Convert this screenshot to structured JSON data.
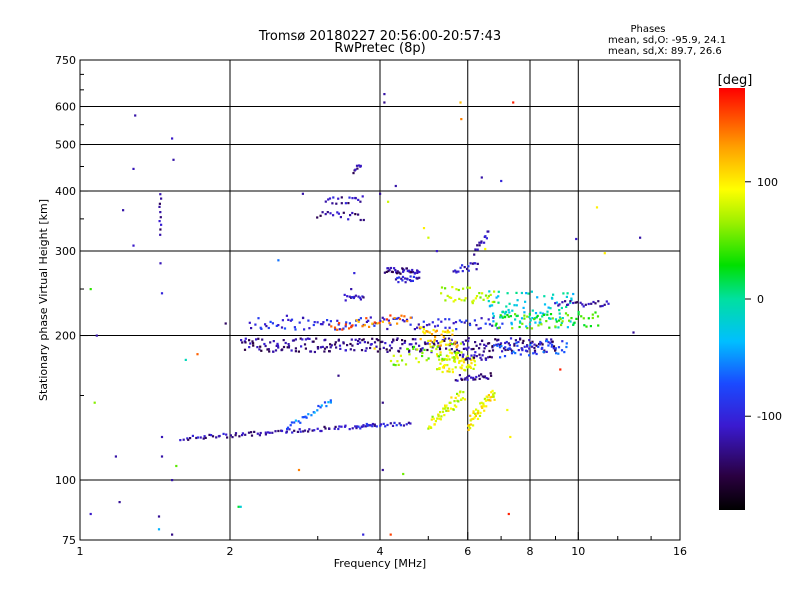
{
  "chart_data": {
    "type": "scatter",
    "title": "Tromsø 20180227 20:56:00-20:57:43",
    "subtitle": "RwPretec (8p)",
    "xlabel": "Frequency [MHz]",
    "ylabel": "Stationary phase Virtual Height [km]",
    "xscale": "log",
    "yscale": "log",
    "xlim": [
      1,
      16
    ],
    "ylim": [
      75,
      750
    ],
    "xticks": [
      1,
      2,
      4,
      6,
      8,
      10,
      16
    ],
    "xtick_labels": [
      "1",
      "2",
      "4",
      "6",
      "8",
      "10",
      "16"
    ],
    "xgrid": [
      2,
      4,
      6,
      8,
      10
    ],
    "yticks": [
      75,
      100,
      200,
      300,
      400,
      500,
      600,
      750
    ],
    "ytick_labels": [
      "75",
      "100",
      "200",
      "300",
      "400",
      "500",
      "600",
      "750"
    ],
    "ygrid": [
      100,
      200,
      300,
      400,
      500,
      600
    ],
    "grid": true,
    "stats": {
      "heading": "Phases",
      "line_o": "mean, sd,O: -95.9, 24.1",
      "line_x": "mean, sd,X:  89.7, 26.6"
    },
    "colorbar": {
      "label": "[deg]",
      "range": [
        -180,
        180
      ],
      "ticks": [
        100,
        0,
        -100
      ],
      "tick_labels": [
        "100",
        "0",
        "-100"
      ]
    },
    "traces": [
      {
        "x0": 1.6,
        "x1": 3.9,
        "y0": 122,
        "y1": 130,
        "phase": -118,
        "n": 85,
        "jit": 2
      },
      {
        "x0": 3.6,
        "x1": 4.6,
        "y0": 130,
        "y1": 131,
        "phase": -105,
        "n": 25,
        "jit": 2
      },
      {
        "x0": 2.6,
        "x1": 3.2,
        "y0": 128,
        "y1": 147,
        "phase": -60,
        "n": 25,
        "jit": 3
      },
      {
        "x0": 2.1,
        "x1": 9.0,
        "y0": 191,
        "y1": 191,
        "phase": -128,
        "n": 260,
        "jit": 7
      },
      {
        "x0": 2.2,
        "x1": 7.0,
        "y0": 212,
        "y1": 212,
        "phase": -95,
        "n": 110,
        "jit": 6
      },
      {
        "x0": 3.2,
        "x1": 4.6,
        "y0": 209,
        "y1": 218,
        "phase": 140,
        "n": 30,
        "jit": 5
      },
      {
        "x0": 4.1,
        "x1": 4.8,
        "y0": 273,
        "y1": 273,
        "phase": -125,
        "n": 35,
        "jit": 3
      },
      {
        "x0": 4.3,
        "x1": 4.8,
        "y0": 262,
        "y1": 262,
        "phase": -110,
        "n": 20,
        "jit": 3
      },
      {
        "x0": 3.4,
        "x1": 3.7,
        "y0": 240,
        "y1": 240,
        "phase": -115,
        "n": 14,
        "jit": 3
      },
      {
        "x0": 3.1,
        "x1": 3.7,
        "y0": 383,
        "y1": 383,
        "phase": -120,
        "n": 18,
        "jit": 4
      },
      {
        "x0": 3.0,
        "x1": 3.7,
        "y0": 355,
        "y1": 355,
        "phase": -125,
        "n": 18,
        "jit": 4
      },
      {
        "x0": 3.55,
        "x1": 3.65,
        "y0": 440,
        "y1": 455,
        "phase": -130,
        "n": 8,
        "jit": 2
      },
      {
        "x0": 5.2,
        "x1": 6.2,
        "y0": 176,
        "y1": 176,
        "phase": 90,
        "n": 70,
        "jit": 10
      },
      {
        "x0": 5.7,
        "x1": 6.7,
        "y0": 163,
        "y1": 165,
        "phase": -130,
        "n": 25,
        "jit": 3
      },
      {
        "x0": 5.8,
        "x1": 6.7,
        "y0": 180,
        "y1": 180,
        "phase": -128,
        "n": 20,
        "jit": 3
      },
      {
        "x0": 5.0,
        "x1": 5.9,
        "y0": 130,
        "y1": 152,
        "phase": 85,
        "n": 50,
        "jit": 7
      },
      {
        "x0": 6.0,
        "x1": 6.8,
        "y0": 130,
        "y1": 152,
        "phase": 95,
        "n": 50,
        "jit": 7
      },
      {
        "x0": 5.3,
        "x1": 6.8,
        "y0": 245,
        "y1": 240,
        "phase": 70,
        "n": 35,
        "jit": 8
      },
      {
        "x0": 6.6,
        "x1": 9.8,
        "y0": 230,
        "y1": 225,
        "phase": -20,
        "n": 90,
        "jit": 18
      },
      {
        "x0": 6.8,
        "x1": 11.0,
        "y0": 214,
        "y1": 216,
        "phase": 40,
        "n": 60,
        "jit": 8
      },
      {
        "x0": 6.8,
        "x1": 9.5,
        "y0": 187,
        "y1": 190,
        "phase": -80,
        "n": 50,
        "jit": 8
      },
      {
        "x0": 9.0,
        "x1": 11.5,
        "y0": 233,
        "y1": 233,
        "phase": -125,
        "n": 25,
        "jit": 3
      },
      {
        "x0": 1.45,
        "x1": 1.45,
        "y0": 325,
        "y1": 395,
        "phase": -120,
        "n": 10,
        "jit": 1
      },
      {
        "x0": 4.8,
        "x1": 5.7,
        "y0": 200,
        "y1": 196,
        "phase": 110,
        "n": 40,
        "jit": 9
      },
      {
        "x0": 4.2,
        "x1": 5.8,
        "y0": 180,
        "y1": 185,
        "phase": 60,
        "n": 40,
        "jit": 9
      },
      {
        "x0": 5.6,
        "x1": 6.3,
        "y0": 275,
        "y1": 280,
        "phase": -110,
        "n": 18,
        "jit": 4
      },
      {
        "x0": 6.2,
        "x1": 6.6,
        "y0": 300,
        "y1": 330,
        "phase": -120,
        "n": 14,
        "jit": 4
      }
    ],
    "points": [
      {
        "x": 1.29,
        "y": 575,
        "phase": -120
      },
      {
        "x": 1.53,
        "y": 515,
        "phase": -110
      },
      {
        "x": 1.54,
        "y": 465,
        "phase": -120
      },
      {
        "x": 1.28,
        "y": 445,
        "phase": -115
      },
      {
        "x": 1.22,
        "y": 365,
        "phase": -120
      },
      {
        "x": 1.28,
        "y": 308,
        "phase": -110
      },
      {
        "x": 1.45,
        "y": 283,
        "phase": -115
      },
      {
        "x": 1.46,
        "y": 245,
        "phase": -100
      },
      {
        "x": 1.05,
        "y": 250,
        "phase": 40
      },
      {
        "x": 1.08,
        "y": 200,
        "phase": -120
      },
      {
        "x": 1.07,
        "y": 145,
        "phase": 60
      },
      {
        "x": 1.18,
        "y": 112,
        "phase": -120
      },
      {
        "x": 1.46,
        "y": 123,
        "phase": -115
      },
      {
        "x": 1.46,
        "y": 112,
        "phase": -120
      },
      {
        "x": 1.56,
        "y": 107,
        "phase": 50
      },
      {
        "x": 1.53,
        "y": 100,
        "phase": -120
      },
      {
        "x": 1.2,
        "y": 90,
        "phase": -125
      },
      {
        "x": 1.05,
        "y": 85,
        "phase": -110
      },
      {
        "x": 1.44,
        "y": 84,
        "phase": -125
      },
      {
        "x": 1.44,
        "y": 79,
        "phase": -40
      },
      {
        "x": 1.53,
        "y": 77,
        "phase": -130
      },
      {
        "x": 1.96,
        "y": 212,
        "phase": -140
      },
      {
        "x": 1.72,
        "y": 183,
        "phase": 150
      },
      {
        "x": 1.63,
        "y": 178,
        "phase": -10
      },
      {
        "x": 2.08,
        "y": 88,
        "phase": 20
      },
      {
        "x": 2.1,
        "y": 88,
        "phase": -20
      },
      {
        "x": 2.75,
        "y": 105,
        "phase": 140
      },
      {
        "x": 3.7,
        "y": 77,
        "phase": -100
      },
      {
        "x": 4.05,
        "y": 145,
        "phase": -130
      },
      {
        "x": 4.05,
        "y": 105,
        "phase": -125
      },
      {
        "x": 4.2,
        "y": 77,
        "phase": 160
      },
      {
        "x": 4.45,
        "y": 103,
        "phase": 55
      },
      {
        "x": 4.08,
        "y": 637,
        "phase": -120
      },
      {
        "x": 4.08,
        "y": 612,
        "phase": -130
      },
      {
        "x": 5.8,
        "y": 612,
        "phase": 120
      },
      {
        "x": 5.82,
        "y": 565,
        "phase": 140
      },
      {
        "x": 7.4,
        "y": 612,
        "phase": 170
      },
      {
        "x": 4.3,
        "y": 410,
        "phase": -120
      },
      {
        "x": 4.15,
        "y": 380,
        "phase": 80
      },
      {
        "x": 6.4,
        "y": 427,
        "phase": -120
      },
      {
        "x": 7.0,
        "y": 420,
        "phase": -100
      },
      {
        "x": 7.25,
        "y": 85,
        "phase": 170
      },
      {
        "x": 10.9,
        "y": 370,
        "phase": 100
      },
      {
        "x": 13.3,
        "y": 320,
        "phase": -120
      },
      {
        "x": 11.3,
        "y": 297,
        "phase": 100
      },
      {
        "x": 9.9,
        "y": 318,
        "phase": -110
      },
      {
        "x": 12.9,
        "y": 203,
        "phase": -125
      },
      {
        "x": 9.2,
        "y": 170,
        "phase": 170
      },
      {
        "x": 7.2,
        "y": 140,
        "phase": 90
      },
      {
        "x": 7.3,
        "y": 123,
        "phase": 100
      },
      {
        "x": 2.6,
        "y": 220,
        "phase": -110
      },
      {
        "x": 2.8,
        "y": 395,
        "phase": -120
      },
      {
        "x": 2.5,
        "y": 287,
        "phase": -60
      },
      {
        "x": 3.55,
        "y": 270,
        "phase": -100
      },
      {
        "x": 3.5,
        "y": 250,
        "phase": -120
      },
      {
        "x": 3.9,
        "y": 188,
        "phase": 110
      },
      {
        "x": 3.3,
        "y": 165,
        "phase": -130
      },
      {
        "x": 4.9,
        "y": 335,
        "phase": 100
      },
      {
        "x": 5.0,
        "y": 320,
        "phase": 80
      },
      {
        "x": 5.2,
        "y": 300,
        "phase": -110
      },
      {
        "x": 6.5,
        "y": 303,
        "phase": 95
      },
      {
        "x": 4.0,
        "y": 395,
        "phase": -125
      }
    ]
  }
}
